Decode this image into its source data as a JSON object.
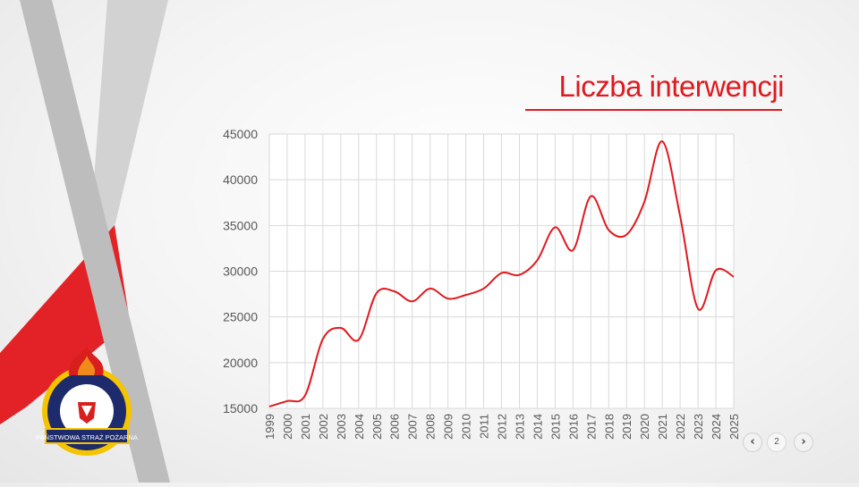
{
  "slide": {
    "title": "Liczba interwencji",
    "accent_color": "#e0191f",
    "gray_stripe_color": "#c8c8c8",
    "logo": {
      "name": "fire-service-emblem-icon",
      "text": "PAŃSTWOWA STRAŻ POŻARNA"
    }
  },
  "navigation": {
    "prev_icon": "chevron-left-icon",
    "next_icon": "chevron-right-icon",
    "page_number": "2"
  },
  "chart_data": {
    "type": "line",
    "title": "",
    "xlabel": "",
    "ylabel": "",
    "categories": [
      "1999",
      "2000",
      "2001",
      "2002",
      "2003",
      "2004",
      "2005",
      "2006",
      "2007",
      "2008",
      "2009",
      "2010",
      "2011",
      "2012",
      "2013",
      "2014",
      "2015",
      "2016",
      "2017",
      "2018",
      "2019",
      "2020",
      "2021",
      "2022",
      "2023",
      "2024",
      "2025"
    ],
    "series": [
      {
        "color": "#e0191f",
        "values": [
          15200,
          15800,
          16400,
          22600,
          23800,
          22500,
          27600,
          27800,
          26700,
          28100,
          27000,
          27400,
          28100,
          29800,
          29600,
          31200,
          34800,
          32300,
          38200,
          34500,
          34000,
          37600,
          44200,
          36000,
          25900,
          30100,
          29400
        ]
      }
    ],
    "ylim": [
      15000,
      45000
    ],
    "yticks": [
      "15000",
      "20000",
      "25000",
      "30000",
      "35000",
      "40000",
      "45000"
    ],
    "grid": true,
    "legend": "none"
  }
}
